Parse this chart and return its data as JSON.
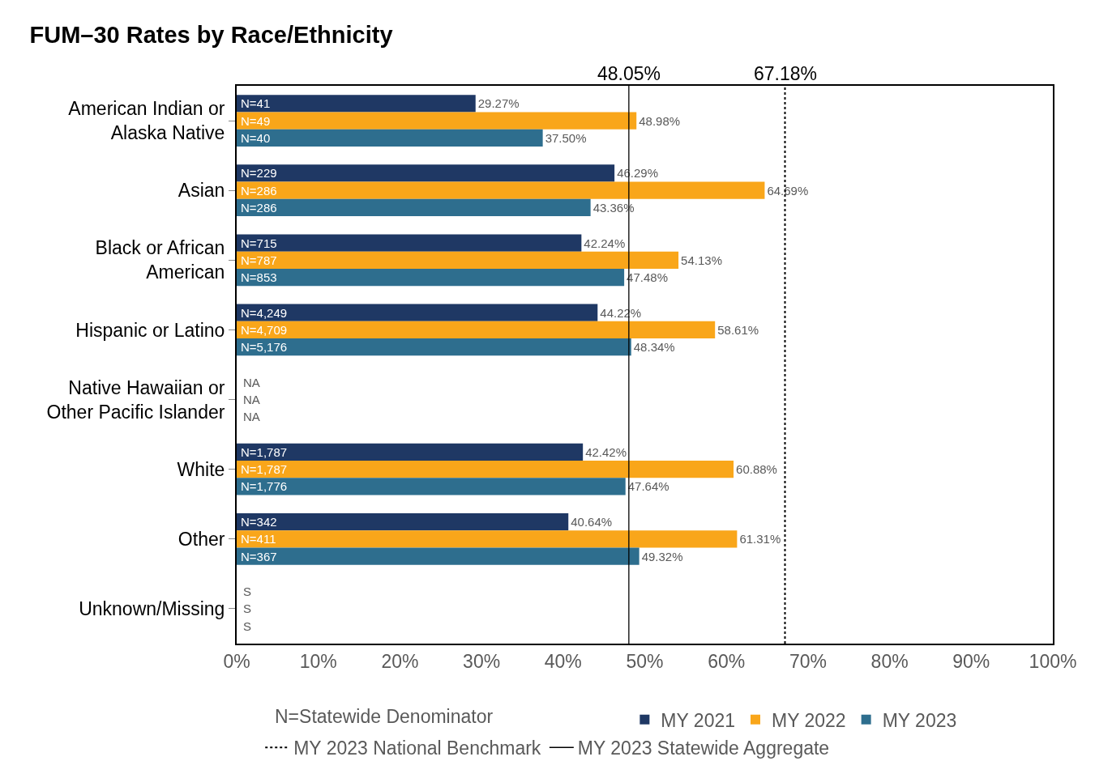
{
  "chart_data": {
    "type": "bar",
    "orientation": "horizontal",
    "title": "FUM–30 Rates by Race/Ethnicity",
    "categories": [
      "American Indian or\nAlaska Native",
      "Asian",
      "Black or African\nAmerican",
      "Hispanic or Latino",
      "Native Hawaiian or\nOther Pacific Islander",
      "White",
      "Other",
      "Unknown/Missing"
    ],
    "series": [
      {
        "name": "MY 2021",
        "color": "#1f3864",
        "values": [
          29.27,
          46.29,
          42.24,
          44.22,
          null,
          42.42,
          40.64,
          null
        ],
        "value_labels": [
          "29.27%",
          "46.29%",
          "42.24%",
          "44.22%",
          "NA",
          "42.42%",
          "40.64%",
          "S"
        ]
      },
      {
        "name": "MY 2022",
        "color": "#f9a61a",
        "values": [
          48.98,
          64.69,
          54.13,
          58.61,
          null,
          60.88,
          61.31,
          null
        ],
        "value_labels": [
          "48.98%",
          "64.69%",
          "54.13%",
          "58.61%",
          "NA",
          "60.88%",
          "61.31%",
          "S"
        ]
      },
      {
        "name": "MY 2023",
        "color": "#2e6e8e",
        "values": [
          37.5,
          43.36,
          47.48,
          48.34,
          null,
          47.64,
          49.32,
          null
        ],
        "value_labels": [
          "37.50%",
          "43.36%",
          "47.48%",
          "48.34%",
          "NA",
          "47.64%",
          "49.32%",
          "S"
        ]
      }
    ],
    "xlim": [
      0,
      100
    ],
    "xticks": [
      {
        "value": 0,
        "label": "0%"
      },
      {
        "value": 10,
        "label": "10%"
      },
      {
        "value": 20,
        "label": "20%"
      },
      {
        "value": 30,
        "label": "30%"
      },
      {
        "value": 40,
        "label": "40%"
      },
      {
        "value": 50,
        "label": "50%"
      },
      {
        "value": 60,
        "label": "60%"
      },
      {
        "value": 70,
        "label": "70%"
      },
      {
        "value": 80,
        "label": "80%"
      },
      {
        "value": 90,
        "label": "90%"
      },
      {
        "value": 100,
        "label": "100%"
      }
    ],
    "ref_lines": [
      {
        "axis": "x",
        "value": 67.18,
        "label": "MY 2023 National Benchmark",
        "color": "#000000",
        "line_style": "dotted"
      },
      {
        "axis": "x",
        "value": 48.05,
        "label": "MY 2023 Statewide Aggregate",
        "color": "#000000",
        "line_style": "solid"
      }
    ],
    "annotations": [
      "67.18%",
      "48.05%",
      "N=Statewide Denominator",
      "N=41",
      "N=229",
      "N=715",
      "N=4,249",
      "N=1,787",
      "N=342",
      "N=49",
      "N=286",
      "N=787",
      "N=4,709",
      "N=1,787",
      "N=411",
      "N=40",
      "N=286",
      "N=853",
      "N=5,176",
      "N=1,776",
      "N=367"
    ],
    "grid": false,
    "legend": "bottom"
  }
}
